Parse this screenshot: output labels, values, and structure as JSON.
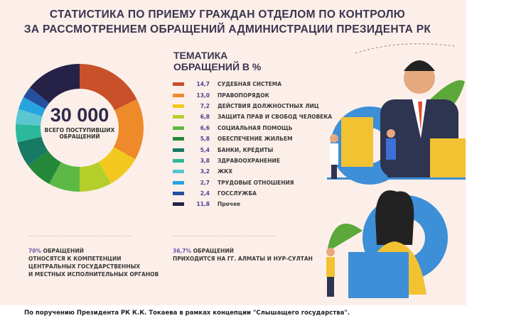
{
  "title": [
    "СТАТИСТИКА ПО ПРИЕМУ ГРАЖДАН ОТДЕЛОМ ПО КОНТРОЛЮ",
    "ЗА РАССМОТРЕНИЕМ ОБРАЩЕНИЙ АДМИНИСТРАЦИИ ПРЕЗИДЕНТА РК"
  ],
  "center": {
    "number": "30 000",
    "label": "ВСЕГО ПОСТУПИВШИХ ОБРАЩЕНИЙ"
  },
  "legend_title": [
    "ТЕМАТИКА",
    "ОБРАЩЕНИЙ В %"
  ],
  "chart_data": {
    "type": "pie",
    "variant": "donut",
    "title": "ТЕМАТИКА ОБРАЩЕНИЙ В %",
    "categories": [
      "СУДЕБНАЯ СИСТЕМА",
      "ПРАВОПОРЯДОК",
      "ДЕЙСТВИЯ ДОЛЖНОСТНЫХ ЛИЦ",
      "ЗАЩИТА ПРАВ И СВОБОД ЧЕЛОВЕКА",
      "СОЦИАЛЬНАЯ ПОМОЩЬ",
      "ОБЕСПЕЧЕНИЕ ЖИЛЬЕМ",
      "БАНКИ, КРЕДИТЫ",
      "ЗДРАВООХРАНЕНИЕ",
      "ЖКХ",
      "ТРУДОВЫЕ ОТНОШЕНИЯ",
      "ГОССЛУЖБА",
      "Прочее"
    ],
    "values": [
      14.7,
      13.0,
      7.2,
      6.8,
      6.6,
      5.8,
      5.4,
      3.8,
      3.2,
      2.7,
      2.4,
      11.8
    ],
    "value_labels": [
      "14,7",
      "13,0",
      "7,2",
      "6,8",
      "6,6",
      "5,8",
      "5,4",
      "3,8",
      "3,2",
      "2,7",
      "2,4",
      "11,8"
    ],
    "colors": [
      "#c8512a",
      "#ef8a2a",
      "#f2c81e",
      "#b5cf2a",
      "#5cb845",
      "#24883a",
      "#177a64",
      "#2cb89a",
      "#5ac6cf",
      "#27a3e0",
      "#2450a0",
      "#252147"
    ],
    "legend_placement": "right"
  },
  "notes": [
    {
      "highlight": "70%",
      "lines": [
        "ОБРАЩЕНИЙ",
        "ОТНОСЯТСЯ К КОМПЕТЕНЦИИ",
        "ЦЕНТРАЛЬНЫХ ГОСУДАРСТВЕННЫХ",
        "И МЕСТНЫХ ИСПОЛНИТЕЛЬНЫХ ОРГАНОВ"
      ]
    },
    {
      "highlight": "36,7%",
      "lines": [
        "ОБРАЩЕНИЙ",
        "ПРИХОДИТСЯ НА ГГ. АЛМАТЫ И НУР-СУЛТАН"
      ]
    }
  ],
  "caption": "По поручению Президента РК К.К. Токаева в рамках концепции \"Слышащего государства\"."
}
